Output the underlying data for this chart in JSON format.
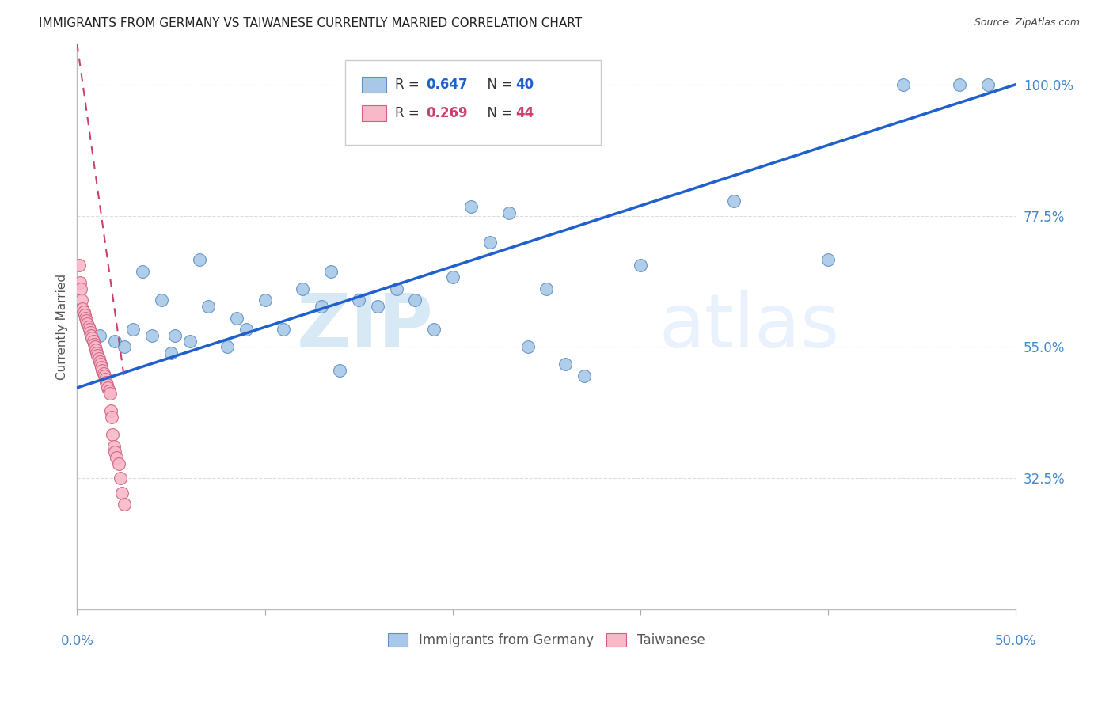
{
  "title": "IMMIGRANTS FROM GERMANY VS TAIWANESE CURRENTLY MARRIED CORRELATION CHART",
  "source": "Source: ZipAtlas.com",
  "ylabel": "Currently Married",
  "xlim": [
    0.0,
    50.0
  ],
  "ylim": [
    10.0,
    107.0
  ],
  "yticks": [
    32.5,
    55.0,
    77.5,
    100.0
  ],
  "ytick_labels": [
    "32.5%",
    "55.0%",
    "77.5%",
    "100.0%"
  ],
  "xtick_positions": [
    0.0,
    10.0,
    20.0,
    30.0,
    40.0,
    50.0
  ],
  "legend_blue_label": "Immigrants from Germany",
  "legend_pink_label": "Taiwanese",
  "R_blue": 0.647,
  "N_blue": 40,
  "R_pink": 0.269,
  "N_pink": 44,
  "blue_color": "#a8c8e8",
  "pink_color": "#f8b8c8",
  "blue_edge_color": "#6090c0",
  "pink_edge_color": "#d06080",
  "blue_line_color": "#2060cc",
  "pink_line_color": "#cc4070",
  "watermark_color": "#daeaf8",
  "title_color": "#222222",
  "source_color": "#444444",
  "axis_color": "#4488cc",
  "grid_color": "#dddddd",
  "blue_scatter_x": [
    1.2,
    2.0,
    2.5,
    3.0,
    3.5,
    4.0,
    4.5,
    5.0,
    5.2,
    6.0,
    6.5,
    7.0,
    8.0,
    8.5,
    9.0,
    10.0,
    11.0,
    12.0,
    13.0,
    13.5,
    14.0,
    15.0,
    16.0,
    17.0,
    18.0,
    19.0,
    20.0,
    21.0,
    22.0,
    23.0,
    24.0,
    25.0,
    26.0,
    27.0,
    30.0,
    35.0,
    40.0,
    44.0,
    47.0,
    48.5
  ],
  "blue_scatter_y": [
    57.0,
    56.0,
    55.0,
    58.0,
    68.0,
    57.0,
    63.0,
    54.0,
    57.0,
    56.0,
    70.0,
    62.0,
    55.0,
    60.0,
    58.0,
    63.0,
    58.0,
    65.0,
    62.0,
    68.0,
    51.0,
    63.0,
    62.0,
    65.0,
    63.0,
    58.0,
    67.0,
    79.0,
    73.0,
    78.0,
    55.0,
    65.0,
    52.0,
    50.0,
    69.0,
    80.0,
    70.0,
    100.0,
    100.0,
    100.0
  ],
  "pink_scatter_x": [
    0.1,
    0.15,
    0.2,
    0.25,
    0.3,
    0.35,
    0.4,
    0.45,
    0.5,
    0.55,
    0.6,
    0.65,
    0.7,
    0.75,
    0.8,
    0.85,
    0.9,
    0.95,
    1.0,
    1.05,
    1.1,
    1.15,
    1.2,
    1.25,
    1.3,
    1.35,
    1.4,
    1.45,
    1.5,
    1.55,
    1.6,
    1.65,
    1.7,
    1.75,
    1.8,
    1.85,
    1.9,
    1.95,
    2.0,
    2.1,
    2.2,
    2.3,
    2.4,
    2.5
  ],
  "pink_scatter_y": [
    69.0,
    66.0,
    65.0,
    63.0,
    61.5,
    61.0,
    60.5,
    60.0,
    59.5,
    59.0,
    58.5,
    58.0,
    57.5,
    57.0,
    56.5,
    56.0,
    55.5,
    55.0,
    54.5,
    54.0,
    53.5,
    53.0,
    52.5,
    52.0,
    51.5,
    51.0,
    50.5,
    50.0,
    49.5,
    49.0,
    48.5,
    48.0,
    47.5,
    47.0,
    44.0,
    43.0,
    40.0,
    38.0,
    37.0,
    36.0,
    35.0,
    32.5,
    30.0,
    28.0
  ],
  "blue_line_x0": 0.0,
  "blue_line_y0": 48.0,
  "blue_line_x1": 50.0,
  "blue_line_y1": 100.0,
  "pink_line_x0": 0.0,
  "pink_line_y0": 107.0,
  "pink_line_x1": 2.5,
  "pink_line_y1": 50.0
}
